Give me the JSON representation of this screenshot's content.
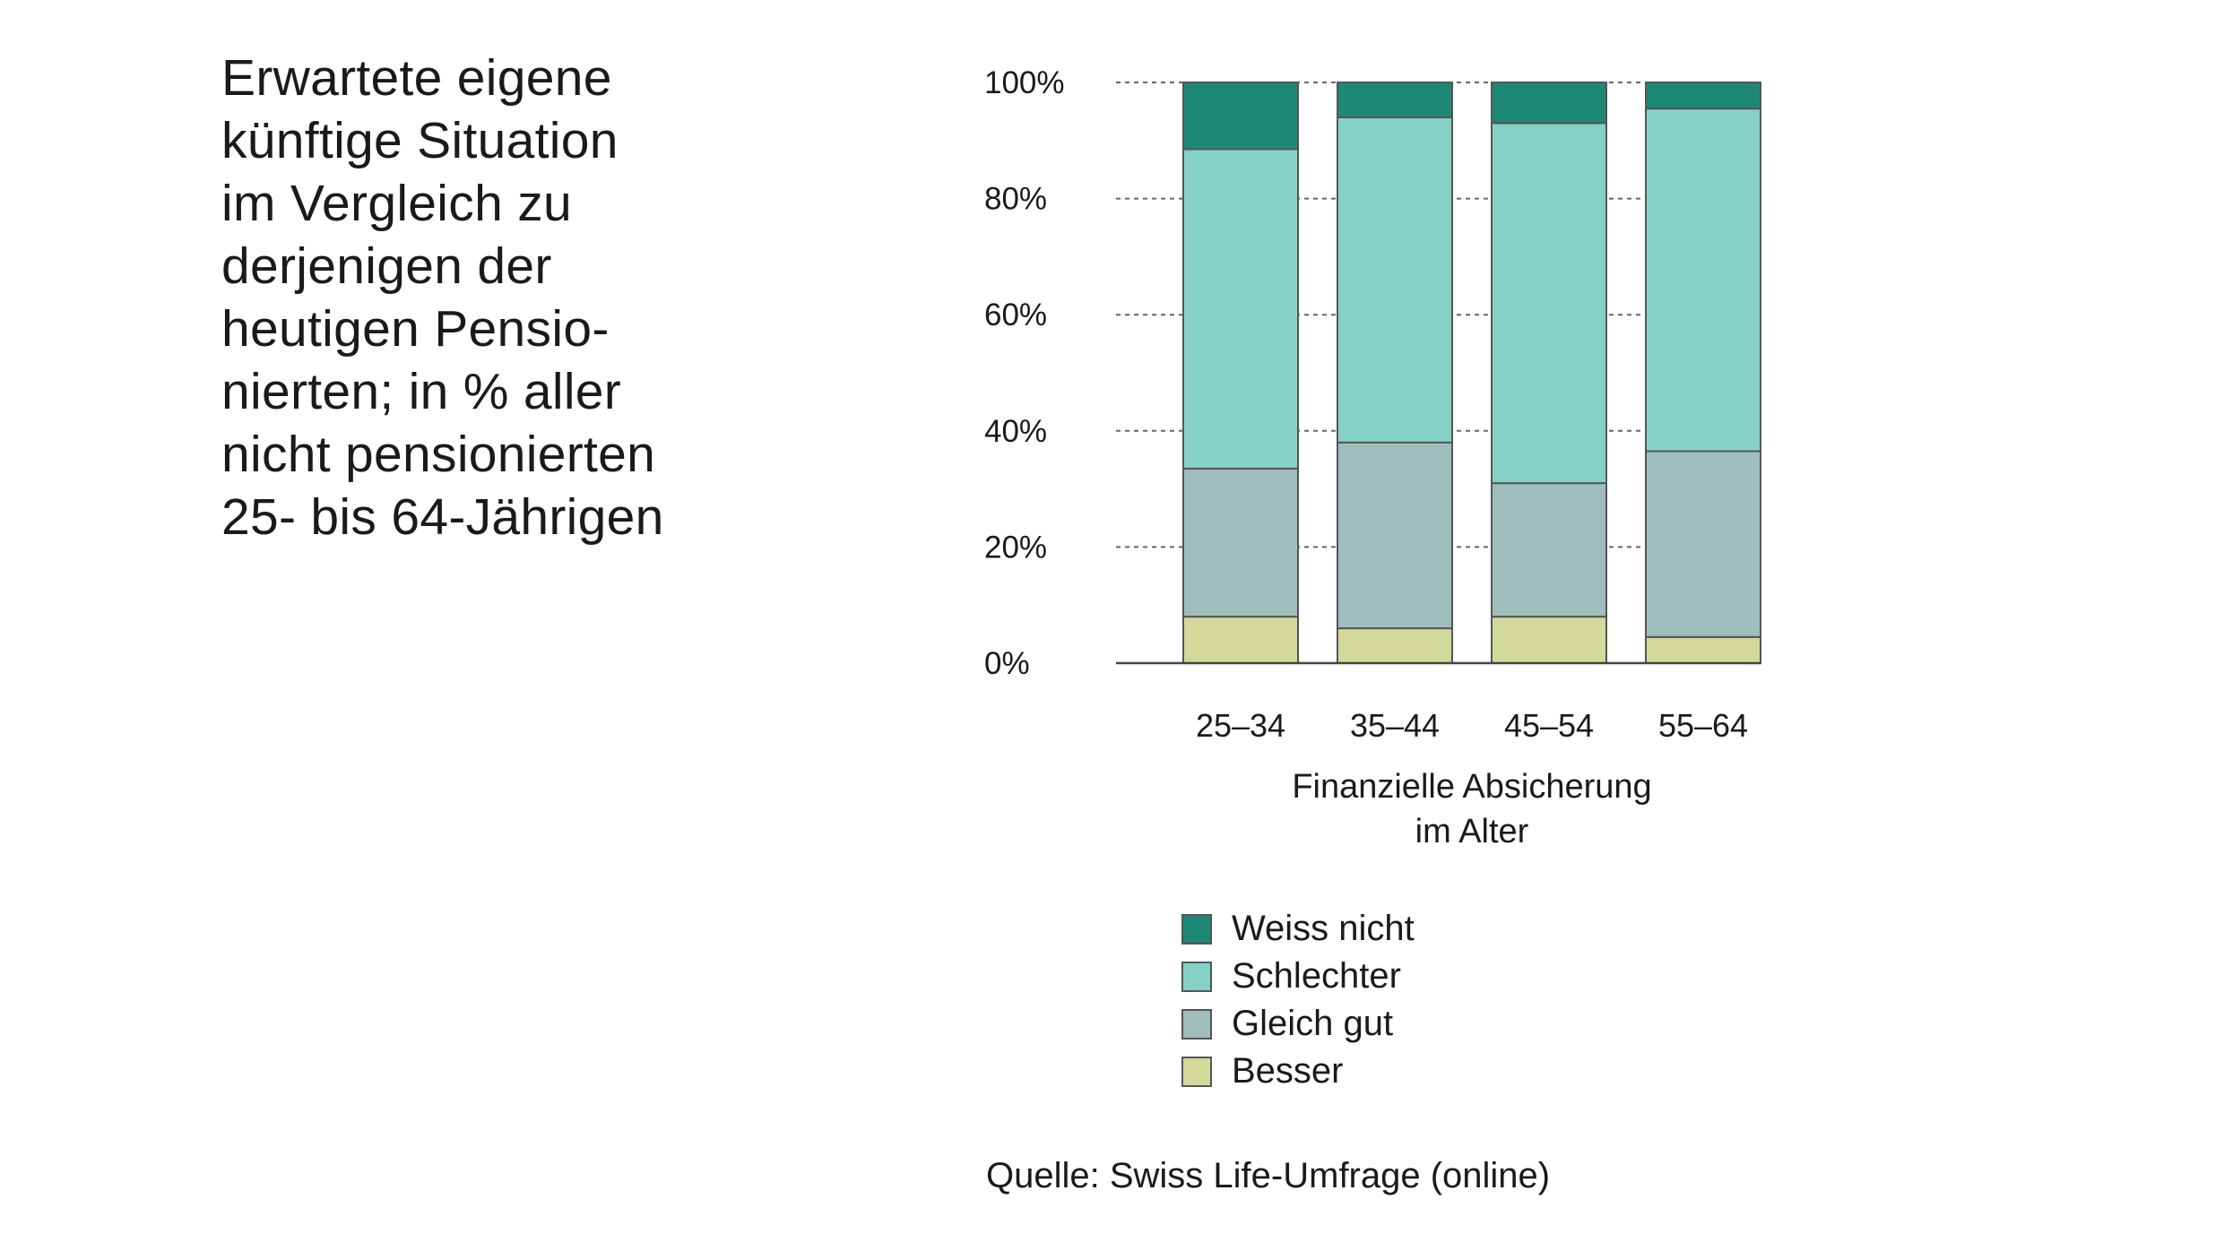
{
  "title": "Erwartete eigene\nkünftige Situation\nim Vergleich zu\nderjenigen der\nheutigen Pensio-\nnierten; in % aller\nnicht pensionierten\n25- bis 64-Jährigen",
  "source": "Quelle: Swiss Life-Umfrage (online)",
  "chart_data": {
    "type": "bar",
    "stacked": true,
    "categories": [
      "25–34",
      "35–44",
      "45–54",
      "55–64"
    ],
    "xlabel": "Finanzielle Absicherung im Alter",
    "xlabel_lines": [
      "Finanzielle Absicherung",
      "im Alter"
    ],
    "ylabel": "",
    "ylim": [
      0,
      100
    ],
    "yticks": [
      0,
      20,
      40,
      60,
      80,
      100
    ],
    "ytick_labels": [
      "0%",
      "20%",
      "40%",
      "60%",
      "80%",
      "100%"
    ],
    "grid": "horizontal dashed",
    "legend_position": "bottom",
    "series": [
      {
        "name": "Besser",
        "color": "#d3d99a",
        "values": [
          8,
          6,
          8,
          4.5
        ]
      },
      {
        "name": "Gleich gut",
        "color": "#9fbdbb",
        "values": [
          25.5,
          32,
          23,
          32
        ]
      },
      {
        "name": "Schlechter",
        "color": "#86d1c6",
        "values": [
          55,
          56,
          62,
          59
        ]
      },
      {
        "name": "Weiss nicht",
        "color": "#1e8877",
        "values": [
          11.5,
          6,
          7,
          4.5
        ]
      }
    ]
  },
  "legend": [
    {
      "label": "Weiss nicht",
      "color": "#1e8877"
    },
    {
      "label": "Schlechter",
      "color": "#86d1c6"
    },
    {
      "label": "Gleich gut",
      "color": "#9fbdbb"
    },
    {
      "label": "Besser",
      "color": "#d3d99a"
    }
  ]
}
